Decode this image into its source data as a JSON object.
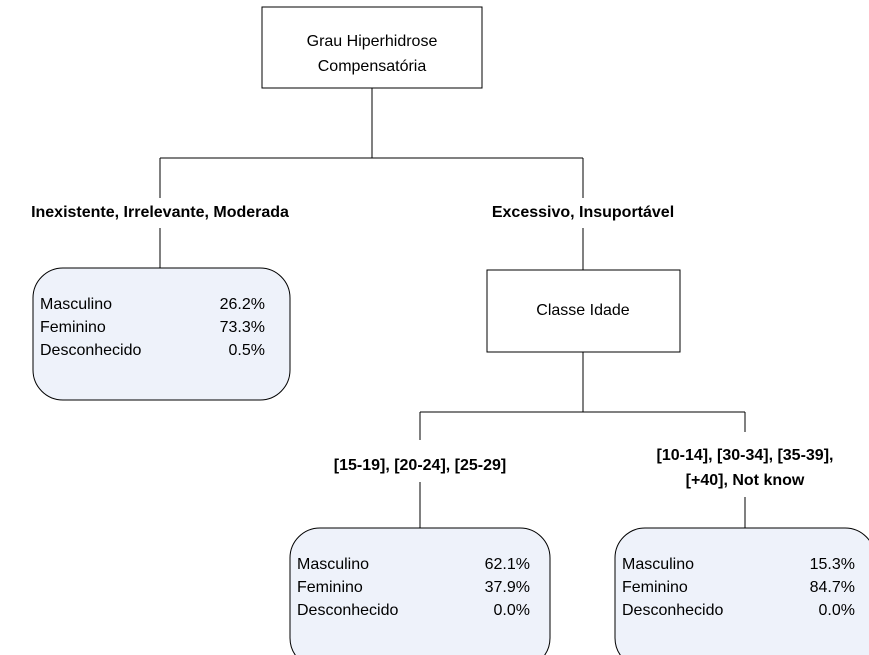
{
  "nodes": [
    {
      "label_lines": [
        "Grau Hiperhidrose",
        "Compensatória"
      ]
    },
    {
      "label_lines": [
        "Classe Idade"
      ]
    }
  ],
  "branches": [
    {
      "label_lines": [
        "Inexistente, Irrelevante, Moderada"
      ]
    },
    {
      "label_lines": [
        "Excessivo, Insuportável"
      ]
    },
    {
      "label_lines": [
        "[15-19], [20-24], [25-29]"
      ]
    },
    {
      "label_lines": [
        "[10-14], [30-34], [35-39],",
        "[+40], Not know"
      ]
    }
  ],
  "leaves": [
    {
      "rows": [
        [
          "Masculino",
          "26.2%"
        ],
        [
          "Feminino",
          "73.3%"
        ],
        [
          "Desconhecido",
          "0.5%"
        ]
      ]
    },
    {
      "rows": [
        [
          "Masculino",
          "62.1%"
        ],
        [
          "Feminino",
          "37.9%"
        ],
        [
          "Desconhecido",
          "0.0%"
        ]
      ]
    },
    {
      "rows": [
        [
          "Masculino",
          "15.3%"
        ],
        [
          "Feminino",
          "84.7%"
        ],
        [
          "Desconhecido",
          "0.0%"
        ]
      ]
    }
  ]
}
